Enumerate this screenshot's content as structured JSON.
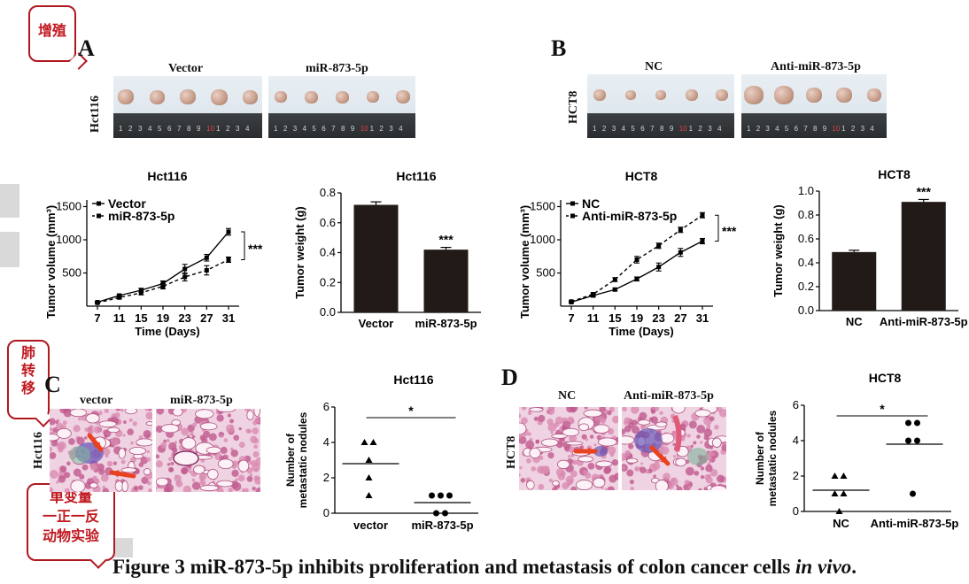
{
  "callouts": {
    "proliferation": "增殖",
    "metastasis_lines": [
      "肺",
      "转",
      "移"
    ],
    "design_lines": [
      "单变量",
      "一正一反",
      "动物实验"
    ]
  },
  "panels": {
    "A": "A",
    "B": "B",
    "C": "C",
    "D": "D"
  },
  "photos": {
    "A": {
      "row_label": "Hct116",
      "groups": [
        "Vector",
        "miR-873-5p"
      ]
    },
    "B": {
      "row_label": "HCT8",
      "groups": [
        "NC",
        "Anti-miR-873-5p"
      ]
    },
    "ruler_numbers": [
      "1",
      "2",
      "3",
      "4",
      "5",
      "6",
      "7",
      "8",
      "9",
      "10",
      "1",
      "2",
      "3",
      "4"
    ]
  },
  "histology": {
    "C": {
      "row_label": "Hct116",
      "groups": [
        "vector",
        "miR-873-5p"
      ]
    },
    "D": {
      "row_label": "HCT8",
      "groups": [
        "NC",
        "Anti-miR-873-5p"
      ]
    }
  },
  "chart_data": [
    {
      "id": "hct116-volume",
      "type": "line",
      "title": "Hct116",
      "xlabel": "Time (Days)",
      "ylabel": "Tumor volume (mm³)",
      "x": [
        7,
        11,
        15,
        19,
        23,
        27,
        31
      ],
      "yticks": [
        500,
        1000,
        1500
      ],
      "ylim": [
        0,
        1600
      ],
      "significance": "***",
      "series": [
        {
          "name": "Vector",
          "style": "solid",
          "marker": "square",
          "values": [
            60,
            160,
            240,
            340,
            560,
            730,
            1120
          ],
          "err": [
            10,
            20,
            30,
            40,
            70,
            50,
            50
          ]
        },
        {
          "name": "miR-873-5p",
          "style": "dashed",
          "marker": "square",
          "values": [
            50,
            130,
            200,
            300,
            440,
            540,
            700
          ],
          "err": [
            10,
            20,
            30,
            40,
            60,
            70,
            40
          ]
        }
      ]
    },
    {
      "id": "hct116-weight",
      "type": "bar",
      "title": "Hct116",
      "ylabel": "Tumor weight (g)",
      "categories": [
        "Vector",
        "miR-873-5p"
      ],
      "values": [
        0.72,
        0.42
      ],
      "err": [
        0.02,
        0.015
      ],
      "ylim": [
        0,
        0.8
      ],
      "yticks": [
        0.0,
        0.2,
        0.4,
        0.6,
        0.8
      ],
      "significance": "***"
    },
    {
      "id": "hct8-volume",
      "type": "line",
      "title": "HCT8",
      "xlabel": "Time (Days)",
      "ylabel": "Tumor volume (mm³)",
      "x": [
        7,
        11,
        15,
        19,
        23,
        27,
        31
      ],
      "yticks": [
        500,
        1000,
        1500
      ],
      "ylim": [
        0,
        1600
      ],
      "significance": "***",
      "series": [
        {
          "name": "NC",
          "style": "solid",
          "marker": "square",
          "values": [
            60,
            160,
            250,
            410,
            590,
            810,
            980
          ],
          "err": [
            10,
            20,
            20,
            30,
            60,
            60,
            40
          ]
        },
        {
          "name": "Anti-miR-873-5p",
          "style": "dashed",
          "marker": "square",
          "values": [
            70,
            180,
            400,
            700,
            910,
            1150,
            1370
          ],
          "err": [
            10,
            20,
            30,
            50,
            40,
            40,
            40
          ]
        }
      ]
    },
    {
      "id": "hct8-weight",
      "type": "bar",
      "title": "HCT8",
      "ylabel": "Tumor weight (g)",
      "categories": [
        "NC",
        "Anti-miR-873-5p"
      ],
      "values": [
        0.49,
        0.91
      ],
      "err": [
        0.015,
        0.02
      ],
      "ylim": [
        0,
        1.0
      ],
      "yticks": [
        0.0,
        0.2,
        0.4,
        0.6,
        0.8,
        1.0
      ],
      "significance": "***"
    },
    {
      "id": "hct116-nodules",
      "type": "scatter",
      "title": "Hct116",
      "ylabel": "Number of metastatic nodules",
      "categories": [
        "vector",
        "miR-873-5p"
      ],
      "ylim": [
        0,
        6
      ],
      "yticks": [
        0,
        2,
        4,
        6
      ],
      "significance": "*",
      "groups": [
        {
          "name": "vector",
          "marker": "triangle",
          "values": [
            4,
            4,
            3,
            2,
            1
          ],
          "mean": 2.8
        },
        {
          "name": "miR-873-5p",
          "marker": "circle",
          "values": [
            1,
            1,
            1,
            0,
            0
          ],
          "mean": 0.6
        }
      ]
    },
    {
      "id": "hct8-nodules",
      "type": "scatter",
      "title": "HCT8",
      "ylabel": "Number of metastatic nodules",
      "categories": [
        "NC",
        "Anti-miR-873-5p"
      ],
      "ylim": [
        0,
        6
      ],
      "yticks": [
        0,
        2,
        4,
        6
      ],
      "significance": "*",
      "groups": [
        {
          "name": "NC",
          "marker": "triangle",
          "values": [
            2,
            2,
            1,
            1,
            0
          ],
          "mean": 1.2
        },
        {
          "name": "Anti-miR-873-5p",
          "marker": "circle",
          "values": [
            5,
            5,
            4,
            4,
            1
          ],
          "mean": 3.8
        }
      ]
    }
  ],
  "caption": {
    "prefix": "Figure 3 miR-873-5p inhibits proliferation and metastasis of colon cancer cells ",
    "italic": "in vivo",
    "suffix": "."
  }
}
